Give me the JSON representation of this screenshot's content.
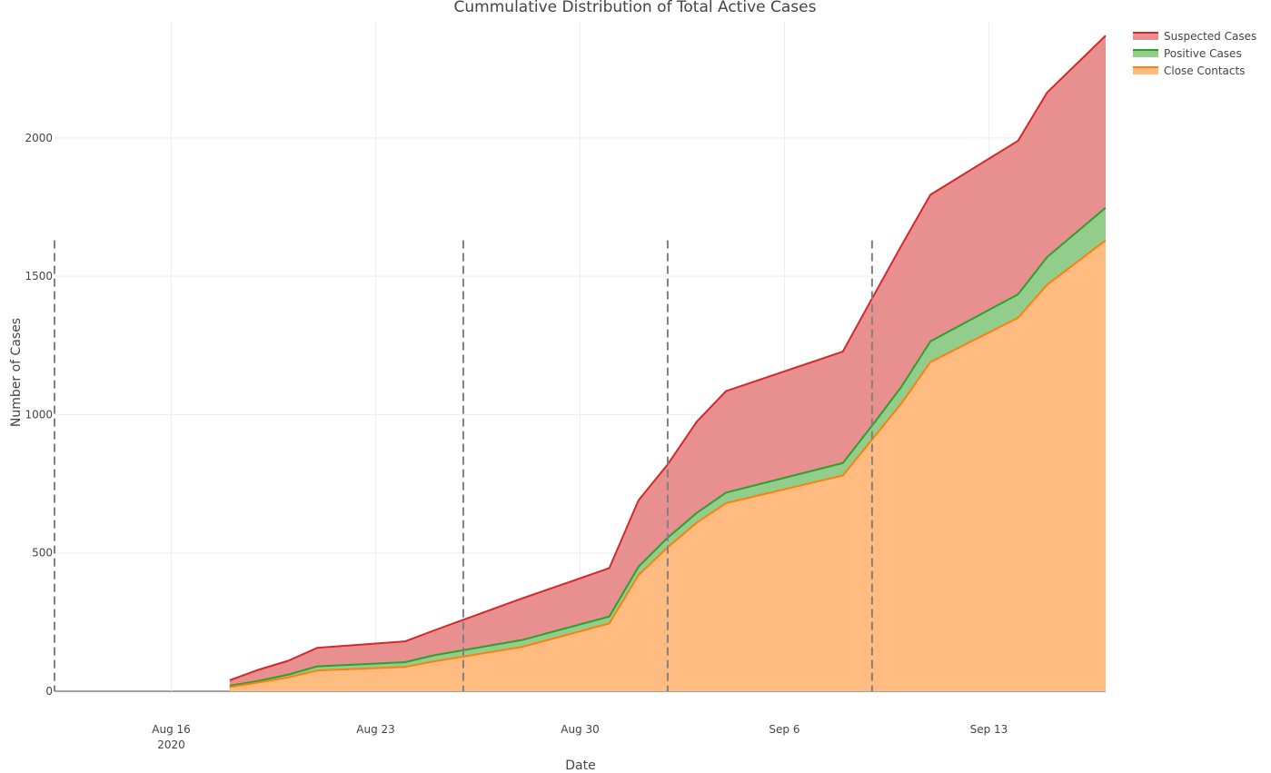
{
  "chart_data": {
    "type": "area",
    "stacked": true,
    "title": "Cummulative Distribution of Total Active Cases",
    "xlabel": "Date",
    "ylabel": "Number of Cases",
    "x_range": [
      "2020-08-12",
      "2020-09-17"
    ],
    "ylim": [
      0,
      2420
    ],
    "y_ticks": [
      0,
      500,
      1000,
      1500,
      2000
    ],
    "x_ticks": [
      {
        "date": "2020-08-16",
        "label": "Aug 16",
        "sublabel": "2020"
      },
      {
        "date": "2020-08-23",
        "label": "Aug 23",
        "sublabel": ""
      },
      {
        "date": "2020-08-30",
        "label": "Aug 30",
        "sublabel": ""
      },
      {
        "date": "2020-09-06",
        "label": "Sep 6",
        "sublabel": ""
      },
      {
        "date": "2020-09-13",
        "label": "Sep 13",
        "sublabel": ""
      }
    ],
    "grid": true,
    "legend_position": "top-right",
    "vertical_markers": [
      "2020-08-12",
      "2020-08-26",
      "2020-09-02",
      "2020-09-09"
    ],
    "marker_top_value": 1630,
    "dates": [
      "2020-08-18",
      "2020-08-19",
      "2020-08-20",
      "2020-08-21",
      "2020-08-24",
      "2020-08-25",
      "2020-08-28",
      "2020-08-31",
      "2020-09-01",
      "2020-09-02",
      "2020-09-03",
      "2020-09-04",
      "2020-09-08",
      "2020-09-09",
      "2020-09-10",
      "2020-09-11",
      "2020-09-14",
      "2020-09-15",
      "2020-09-17"
    ],
    "series": [
      {
        "name": "Close Contacts",
        "color": "#ff7f0e",
        "fill": "#ffbb80",
        "values": [
          15,
          32,
          50,
          75,
          88,
          108,
          160,
          245,
          420,
          520,
          610,
          680,
          780,
          910,
          1040,
          1190,
          1350,
          1470,
          1630
        ]
      },
      {
        "name": "Positive Cases",
        "color": "#2ca02c",
        "fill": "#92cd8c",
        "values": [
          20,
          38,
          60,
          90,
          105,
          130,
          185,
          270,
          450,
          555,
          645,
          718,
          825,
          960,
          1100,
          1265,
          1435,
          1570,
          1748
        ]
      },
      {
        "name": "Suspected Cases",
        "color": "#d62728",
        "fill": "#e89090",
        "values": [
          40,
          78,
          110,
          157,
          180,
          220,
          335,
          445,
          690,
          820,
          975,
          1085,
          1228,
          1420,
          1610,
          1795,
          1990,
          2165,
          2370
        ]
      }
    ]
  }
}
